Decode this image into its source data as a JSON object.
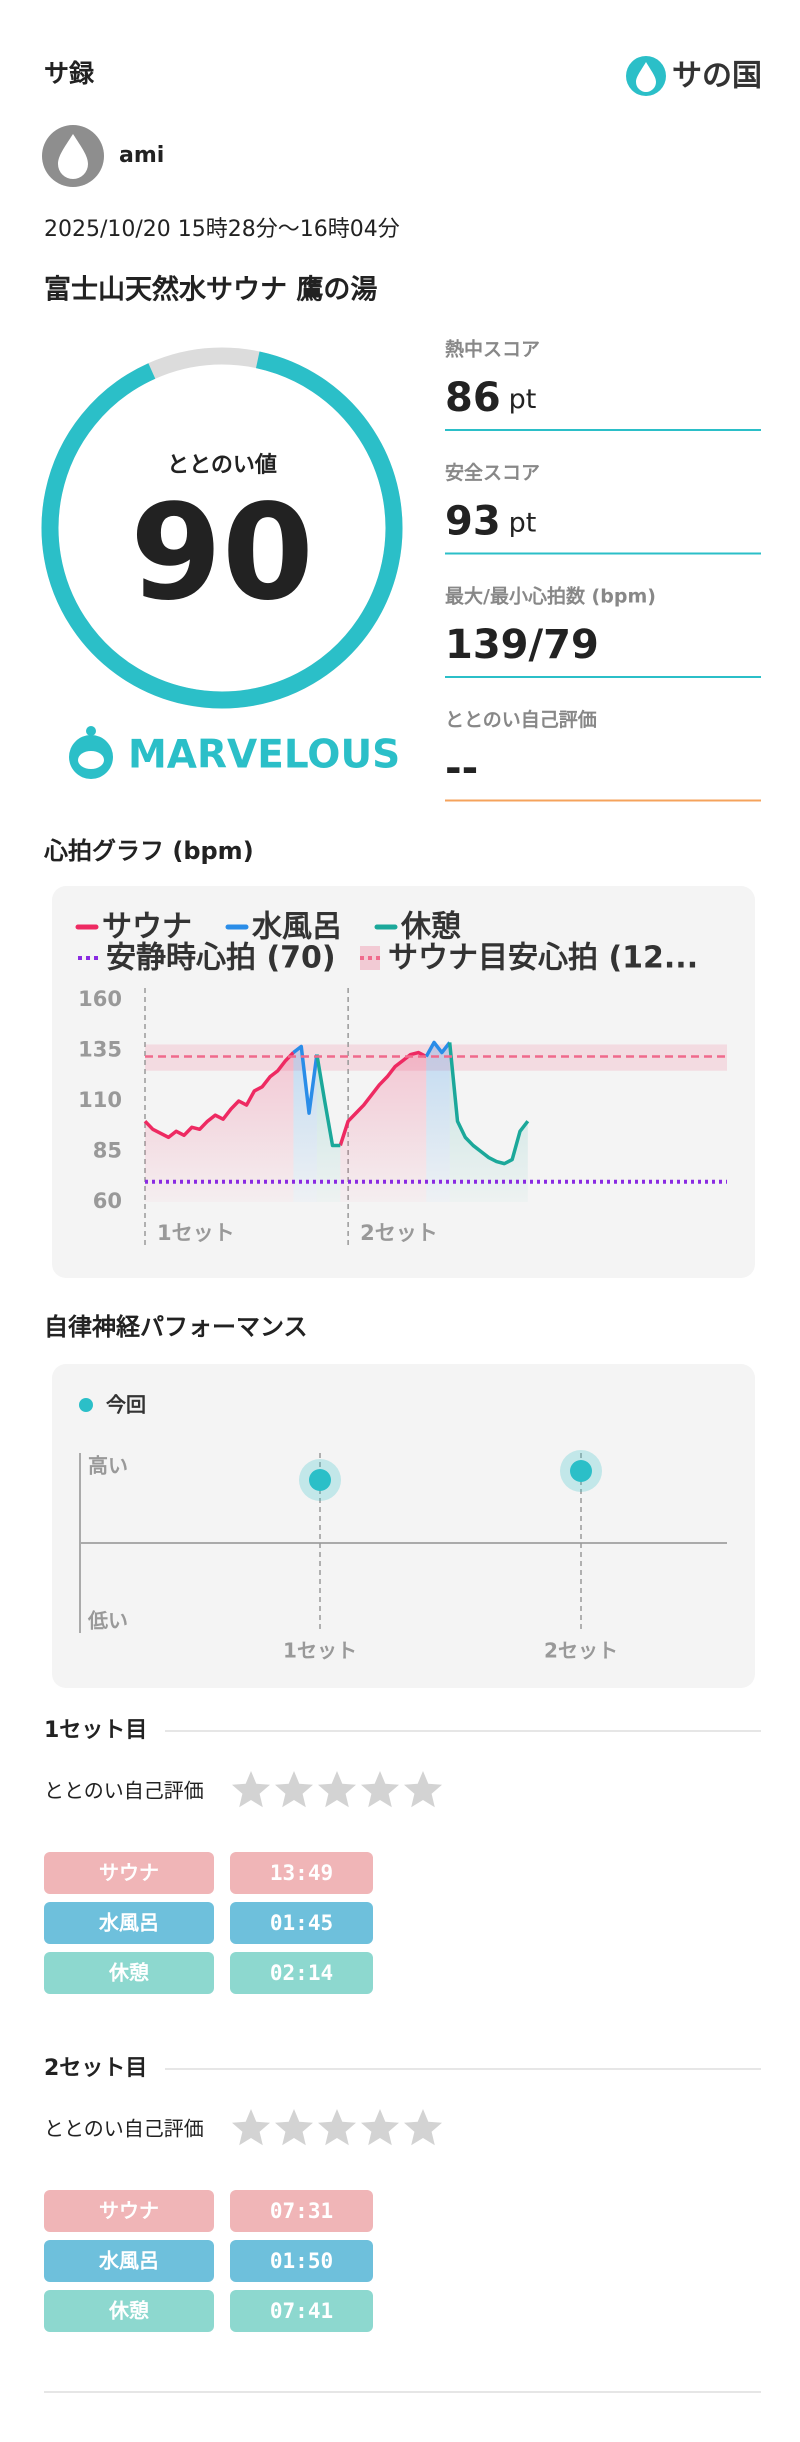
{
  "header": {
    "app_title": "サ録",
    "logo": "サの国"
  },
  "user": {
    "name": "ami"
  },
  "session": {
    "datetime": "2025/10/20 15時28分〜16時04分",
    "facility": "富士山天然水サウナ 鷹の湯"
  },
  "score": {
    "label": "ととのい値",
    "value": 90,
    "rating": "MARVELOUS"
  },
  "metrics": [
    {
      "label": "熱中スコア",
      "value": 86,
      "unit": "pt",
      "line_color": "#2bbfc8"
    },
    {
      "label": "安全スコア",
      "value": 93,
      "unit": "pt",
      "line_color": "#2bbfc8"
    },
    {
      "label": "最大/最小心拍数 (bpm)",
      "value": "139/79",
      "line_color": "#2bbfc8"
    },
    {
      "label": "ととのい自己評価",
      "value": "--",
      "line_color": "#f5a35c"
    }
  ],
  "heart_chart": {
    "type": "line",
    "title": "心拍グラフ (bpm)",
    "categories": [
      "1セット",
      null,
      null,
      null,
      null,
      null,
      null,
      null,
      null,
      null,
      null,
      null,
      null,
      null,
      null,
      null,
      null,
      null,
      null,
      null,
      null,
      null,
      null,
      null,
      null,
      null,
      "2セット",
      null,
      null,
      null,
      null,
      null,
      null,
      null,
      null,
      null,
      null,
      null,
      null,
      null,
      null,
      null,
      null,
      null,
      null,
      null,
      null,
      null,
      null,
      null
    ],
    "series": [
      {
        "name": "サウナ",
        "color": "#ee2a62",
        "values": [
          100,
          96,
          94,
          92,
          95,
          93,
          97,
          96,
          100,
          103,
          101,
          106,
          110,
          108,
          115,
          117,
          122,
          125,
          130,
          134,
          null,
          null,
          null,
          null,
          null,
          88,
          100,
          104,
          108,
          113,
          118,
          122,
          127,
          130,
          133,
          134,
          132,
          null,
          null,
          null,
          null,
          null,
          null,
          null,
          null,
          null,
          null,
          null,
          null,
          null
        ]
      },
      {
        "name": "水風呂",
        "color": "#2a8de8",
        "values": [
          null,
          null,
          null,
          null,
          null,
          null,
          null,
          null,
          null,
          null,
          null,
          null,
          null,
          null,
          null,
          null,
          null,
          null,
          null,
          134,
          137,
          104,
          133,
          null,
          null,
          null,
          null,
          null,
          null,
          null,
          null,
          null,
          null,
          null,
          null,
          null,
          132,
          139,
          134,
          139,
          null,
          null,
          null,
          null,
          null,
          null,
          null,
          null,
          null,
          null
        ]
      },
      {
        "name": "休憩",
        "color": "#1ba89a",
        "values": [
          null,
          null,
          null,
          null,
          null,
          null,
          null,
          null,
          null,
          null,
          null,
          null,
          null,
          null,
          null,
          null,
          null,
          null,
          null,
          null,
          null,
          null,
          133,
          110,
          88,
          88,
          null,
          null,
          null,
          null,
          null,
          null,
          null,
          null,
          null,
          null,
          null,
          null,
          null,
          139,
          100,
          92,
          88,
          85,
          82,
          80,
          79,
          81,
          95,
          100
        ]
      }
    ],
    "references": [
      {
        "name": "安静時心拍 (70)",
        "value": 70,
        "color": "#8a2be2"
      },
      {
        "name": "サウナ目安心拍 (12...",
        "value": 132,
        "range": [
          125,
          138
        ],
        "color": "#f06a8c"
      }
    ],
    "ylim": [
      60,
      160
    ],
    "yticks": [
      60,
      85,
      110,
      135,
      160
    ]
  },
  "autonomic_chart": {
    "type": "scatter",
    "title": "自律神経パフォーマンス",
    "categories": [
      "1セット",
      "2セット"
    ],
    "series": [
      {
        "name": "今回",
        "color": "#2bbfc8",
        "values": [
          0.7,
          0.8
        ]
      }
    ],
    "ylim": [
      -1,
      1
    ],
    "yticks": [
      {
        "value": 1,
        "label": "高い"
      },
      {
        "value": -1,
        "label": "低い"
      }
    ]
  },
  "sets": [
    {
      "title": "1セット目",
      "rating_label": "ととのい自己評価",
      "rows": [
        {
          "label": "サウナ",
          "time": "13:49",
          "color": "#f0b5b7"
        },
        {
          "label": "水風呂",
          "time": "01:45",
          "color": "#6ec0dc"
        },
        {
          "label": "休憩",
          "time": "02:14",
          "color": "#8dd8cf"
        }
      ]
    },
    {
      "title": "2セット目",
      "rating_label": "ととのい自己評価",
      "rows": [
        {
          "label": "サウナ",
          "time": "07:31",
          "color": "#f0b5b7"
        },
        {
          "label": "水風呂",
          "time": "01:50",
          "color": "#6ec0dc"
        },
        {
          "label": "休憩",
          "time": "07:41",
          "color": "#8dd8cf"
        }
      ]
    }
  ]
}
